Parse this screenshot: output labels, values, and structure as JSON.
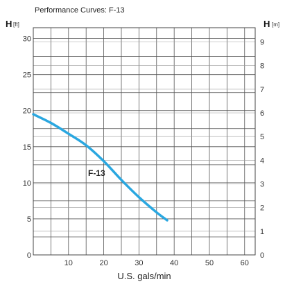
{
  "chart_data": {
    "type": "line",
    "title": "Performance Curves: F-13",
    "xlabel": "U.S. gals/min",
    "ylabel_left": {
      "symbol": "H",
      "unit": "[ft]"
    },
    "ylabel_right": {
      "symbol": "H",
      "unit": "[m]"
    },
    "xlim": [
      0,
      63
    ],
    "ylim_left": [
      0,
      31.5
    ],
    "ylim_right": [
      0,
      9.6
    ],
    "x_ticks": [
      10,
      20,
      30,
      40,
      50,
      60
    ],
    "x_tick_labels": [
      "10",
      "20",
      "30",
      "40",
      "50",
      "60"
    ],
    "y_left_ticks": [
      0,
      5,
      10,
      15,
      20,
      25,
      30
    ],
    "y_left_tick_labels": [
      "0",
      "5",
      "10",
      "15",
      "20",
      "25",
      "30"
    ],
    "y_right_ticks": [
      0,
      1,
      2,
      3,
      4,
      5,
      6,
      7,
      8,
      9
    ],
    "y_right_tick_labels": [
      "0",
      "1",
      "2",
      "3",
      "4",
      "5",
      "6",
      "7",
      "8",
      "9"
    ],
    "grid": true,
    "series": [
      {
        "name": "F-13",
        "color": "#2aa7e0",
        "x": [
          0,
          5,
          10,
          15,
          20,
          25,
          30,
          35,
          38
        ],
        "y": [
          19.5,
          18.3,
          16.8,
          15.2,
          13.0,
          10.4,
          8.0,
          5.9,
          4.8
        ]
      }
    ]
  }
}
